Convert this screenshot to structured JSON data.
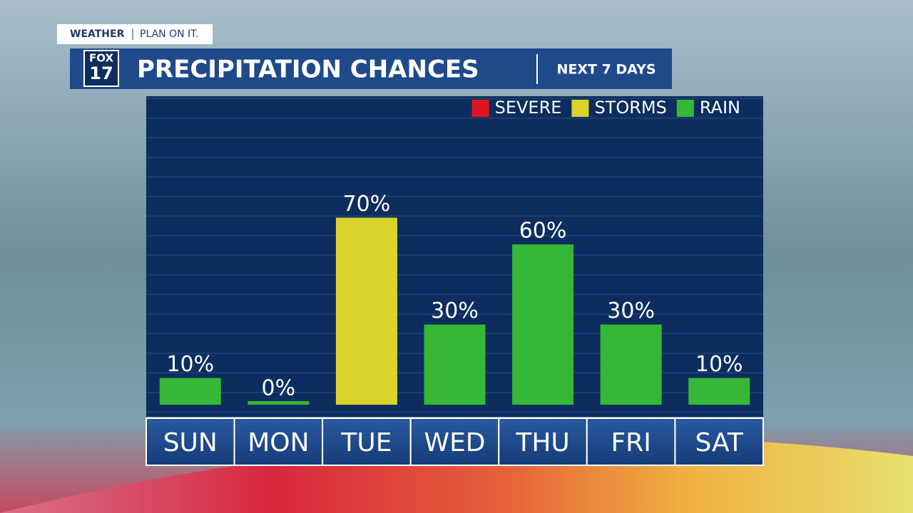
{
  "brand": {
    "section": "WEATHER",
    "tagline": "PLAN ON IT.",
    "logo_top": "FOX",
    "logo_bottom": "17"
  },
  "chart_data": {
    "type": "bar",
    "title": "PRECIPITATION CHANCES",
    "subtitle": "NEXT 7 DAYS",
    "categories": [
      "SUN",
      "MON",
      "TUE",
      "WED",
      "THU",
      "FRI",
      "SAT"
    ],
    "series": [
      {
        "name": "SEVERE",
        "color": "#e0141e",
        "values": [
          null,
          null,
          null,
          null,
          null,
          null,
          null
        ],
        "value_labels": [
          null,
          null,
          null,
          null,
          null,
          null,
          null
        ]
      },
      {
        "name": "STORMS",
        "color": "#d9d42a",
        "values": [
          null,
          null,
          70,
          null,
          null,
          null,
          null
        ],
        "value_labels": [
          null,
          null,
          "70%",
          null,
          null,
          null,
          null
        ]
      },
      {
        "name": "RAIN",
        "color": "#37b737",
        "values": [
          10,
          0,
          null,
          30,
          60,
          30,
          10
        ],
        "value_labels": [
          "10%",
          "0%",
          null,
          "30%",
          "60%",
          "30%",
          "10%"
        ]
      }
    ],
    "ylim": [
      0,
      100
    ]
  }
}
